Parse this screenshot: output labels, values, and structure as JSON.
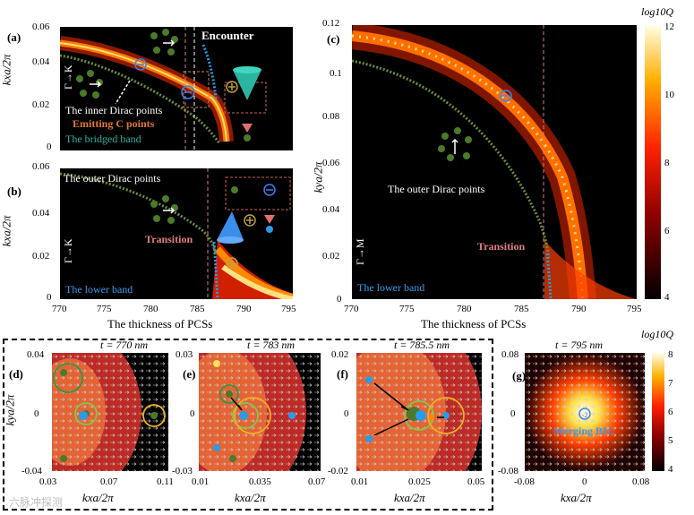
{
  "colorbar_top": {
    "label": "log10Q",
    "ticks": [
      "12",
      "10",
      "8",
      "6",
      "4"
    ]
  },
  "colorbar_bottom": {
    "label": "log10Q",
    "ticks": [
      "8",
      "7",
      "6",
      "5",
      "4"
    ]
  },
  "panel_a": {
    "label": "(a)",
    "yaxis_label": "kxa/2π",
    "yticks": [
      "0.06",
      "0.04",
      "0.02",
      "0"
    ],
    "direction": "Γ→K",
    "annotations": {
      "encounter": "Encounter",
      "inner_dirac": "The inner Dirac points",
      "emitting": "Emitting C points",
      "bridged": "The bridged band"
    }
  },
  "panel_b": {
    "label": "(b)",
    "yaxis_label": "kxa/2π",
    "yticks": [
      "0.06",
      "0.04",
      "0.02",
      "0"
    ],
    "xticks": [
      "770",
      "775",
      "780",
      "785",
      "790",
      "795"
    ],
    "xaxis_label": "The thickness of PCSs",
    "direction": "Γ→K",
    "annotations": {
      "outer_dirac": "The outer Dirac points",
      "transition": "Transition",
      "lower_band": "The lower  band"
    }
  },
  "panel_c": {
    "label": "(c)",
    "yaxis_label": "kya/2π",
    "yticks": [
      "0.12",
      "0.1",
      "0.08",
      "0.06",
      "0.04",
      "0.02",
      "0"
    ],
    "xticks": [
      "770",
      "775",
      "780",
      "785",
      "790",
      "795"
    ],
    "xaxis_label": "The thickness of PCSs",
    "direction": "Γ→M",
    "annotations": {
      "outer_dirac": "The outer Dirac points",
      "transition": "Transition",
      "lower_band": "The lower  band"
    }
  },
  "panel_d": {
    "label": "(d)",
    "title": "t = 770 nm",
    "yticks": [
      "0.04",
      "0",
      "-0.04"
    ],
    "xticks": [
      "0.03",
      "0.07",
      "0.11"
    ],
    "xaxis_label": "kxa/2π",
    "yaxis_label": "kya/2π"
  },
  "panel_e": {
    "label": "(e)",
    "title": "t = 783 nm",
    "yticks": [
      "0.03",
      "0",
      "-0.03"
    ],
    "xticks": [
      "0.01",
      "0.035",
      "0.07"
    ],
    "xaxis_label": "kxa/2π"
  },
  "panel_f": {
    "label": "(f)",
    "title": "t = 785.5 nm",
    "yticks": [
      "0.02",
      "0",
      "-0.02"
    ],
    "xticks": [
      "0.01",
      "0.025",
      "0.05"
    ],
    "xaxis_label": "kxa/2π"
  },
  "panel_g": {
    "label": "(g)",
    "title": "t = 795 nm",
    "yticks": [
      "0.08",
      "0",
      "-0.08"
    ],
    "xticks": [
      "-0.08",
      "0",
      "0.08"
    ],
    "xaxis_label": "kxa/2π",
    "annotation": "Merging BIC",
    "charge": "-2"
  },
  "watermark": "六脉冲探测"
}
